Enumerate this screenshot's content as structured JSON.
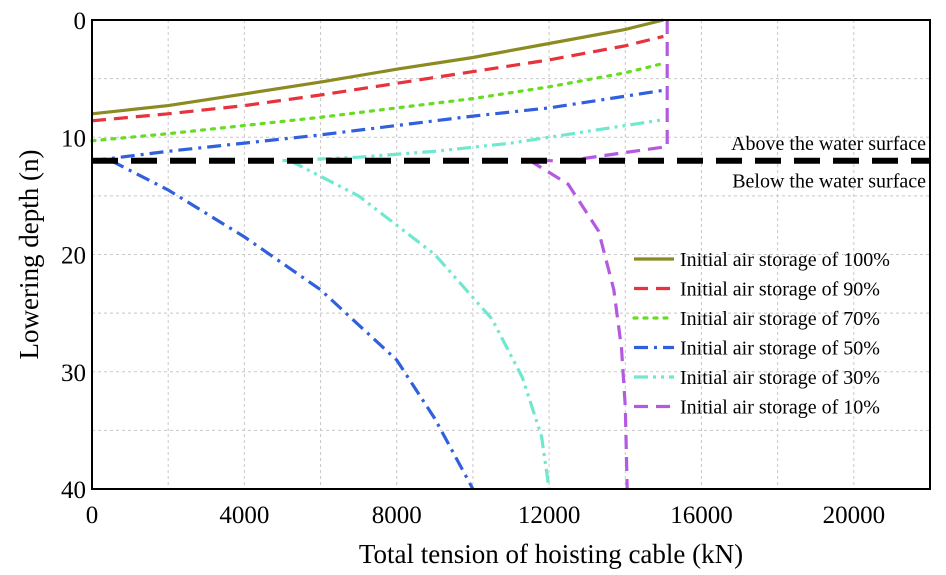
{
  "chart_data": {
    "type": "line",
    "title": "",
    "xlabel": "Total tension of hoisting cable (kN)",
    "ylabel": "Lowering depth (n)",
    "xlim": [
      0,
      22000
    ],
    "ylim": [
      0,
      40
    ],
    "y_inverted": true,
    "x_ticks": [
      0,
      4000,
      8000,
      12000,
      16000,
      20000
    ],
    "y_ticks": [
      0,
      10,
      20,
      30,
      40
    ],
    "grid": true,
    "legend_position": "right",
    "reference_line": {
      "y": 12,
      "color": "#000000",
      "style": "dashed"
    },
    "annotations": [
      {
        "text": "Above the water surface",
        "x": 22000,
        "y": 10.5
      },
      {
        "text": "Below the water surface",
        "x": 22000,
        "y": 13.7
      }
    ],
    "series": [
      {
        "name": "Initial air storage of 100%",
        "color": "#8b8b22",
        "style": "solid",
        "points": [
          [
            0,
            8
          ],
          [
            2000,
            7.3
          ],
          [
            4000,
            6.3
          ],
          [
            6000,
            5.3
          ],
          [
            8000,
            4.2
          ],
          [
            10000,
            3.2
          ],
          [
            12000,
            2.0
          ],
          [
            14000,
            0.8
          ],
          [
            15000,
            0
          ]
        ]
      },
      {
        "name": "Initial air storage of 90%",
        "color": "#e8323c",
        "style": "dashed",
        "points": [
          [
            0,
            8.6
          ],
          [
            2000,
            8.0
          ],
          [
            4000,
            7.3
          ],
          [
            6000,
            6.4
          ],
          [
            8000,
            5.4
          ],
          [
            10000,
            4.4
          ],
          [
            12000,
            3.4
          ],
          [
            14000,
            2.2
          ],
          [
            15000,
            1.4
          ]
        ]
      },
      {
        "name": "Initial air storage of 70%",
        "color": "#66dd22",
        "style": "dotted",
        "points": [
          [
            0,
            10.3
          ],
          [
            2000,
            9.7
          ],
          [
            4000,
            9.0
          ],
          [
            6000,
            8.3
          ],
          [
            8000,
            7.5
          ],
          [
            10000,
            6.7
          ],
          [
            12000,
            5.7
          ],
          [
            14000,
            4.5
          ],
          [
            15000,
            3.7
          ]
        ]
      },
      {
        "name": "Initial air storage of 50%",
        "color": "#3060dd",
        "style": "dashdot",
        "points": [
          [
            0,
            12
          ],
          [
            500,
            11.8
          ],
          [
            2000,
            11.2
          ],
          [
            4000,
            10.5
          ],
          [
            6000,
            9.8
          ],
          [
            8000,
            9.0
          ],
          [
            10000,
            8.2
          ],
          [
            12000,
            7.5
          ],
          [
            14000,
            6.5
          ],
          [
            15000,
            6.0
          ],
          [
            500,
            12
          ],
          [
            2000,
            14.5
          ],
          [
            4000,
            18.5
          ],
          [
            6000,
            23.0
          ],
          [
            8000,
            29.0
          ],
          [
            9000,
            34.0
          ],
          [
            10000,
            40
          ]
        ]
      },
      {
        "name": "Initial air storage of 30%",
        "color": "#70e8d0",
        "style": "dashdotdot",
        "points": [
          [
            5000,
            12
          ],
          [
            7000,
            11.7
          ],
          [
            9000,
            11.2
          ],
          [
            11000,
            10.5
          ],
          [
            13000,
            9.5
          ],
          [
            15000,
            8.5
          ],
          [
            5200,
            12
          ],
          [
            7000,
            15.0
          ],
          [
            9000,
            20.0
          ],
          [
            10500,
            25.5
          ],
          [
            11300,
            30.5
          ],
          [
            11800,
            35.5
          ],
          [
            12000,
            40
          ]
        ]
      },
      {
        "name": "Initial air storage of 10%",
        "color": "#b45ae0",
        "style": "dashed",
        "points": [
          [
            15100,
            0
          ],
          [
            15100,
            10.8
          ],
          [
            14000,
            11.3
          ],
          [
            12500,
            12
          ],
          [
            11500,
            12
          ],
          [
            12500,
            14.0
          ],
          [
            13300,
            18.0
          ],
          [
            13700,
            23.0
          ],
          [
            13900,
            28.0
          ],
          [
            14000,
            33.0
          ],
          [
            14050,
            40
          ]
        ]
      }
    ]
  }
}
